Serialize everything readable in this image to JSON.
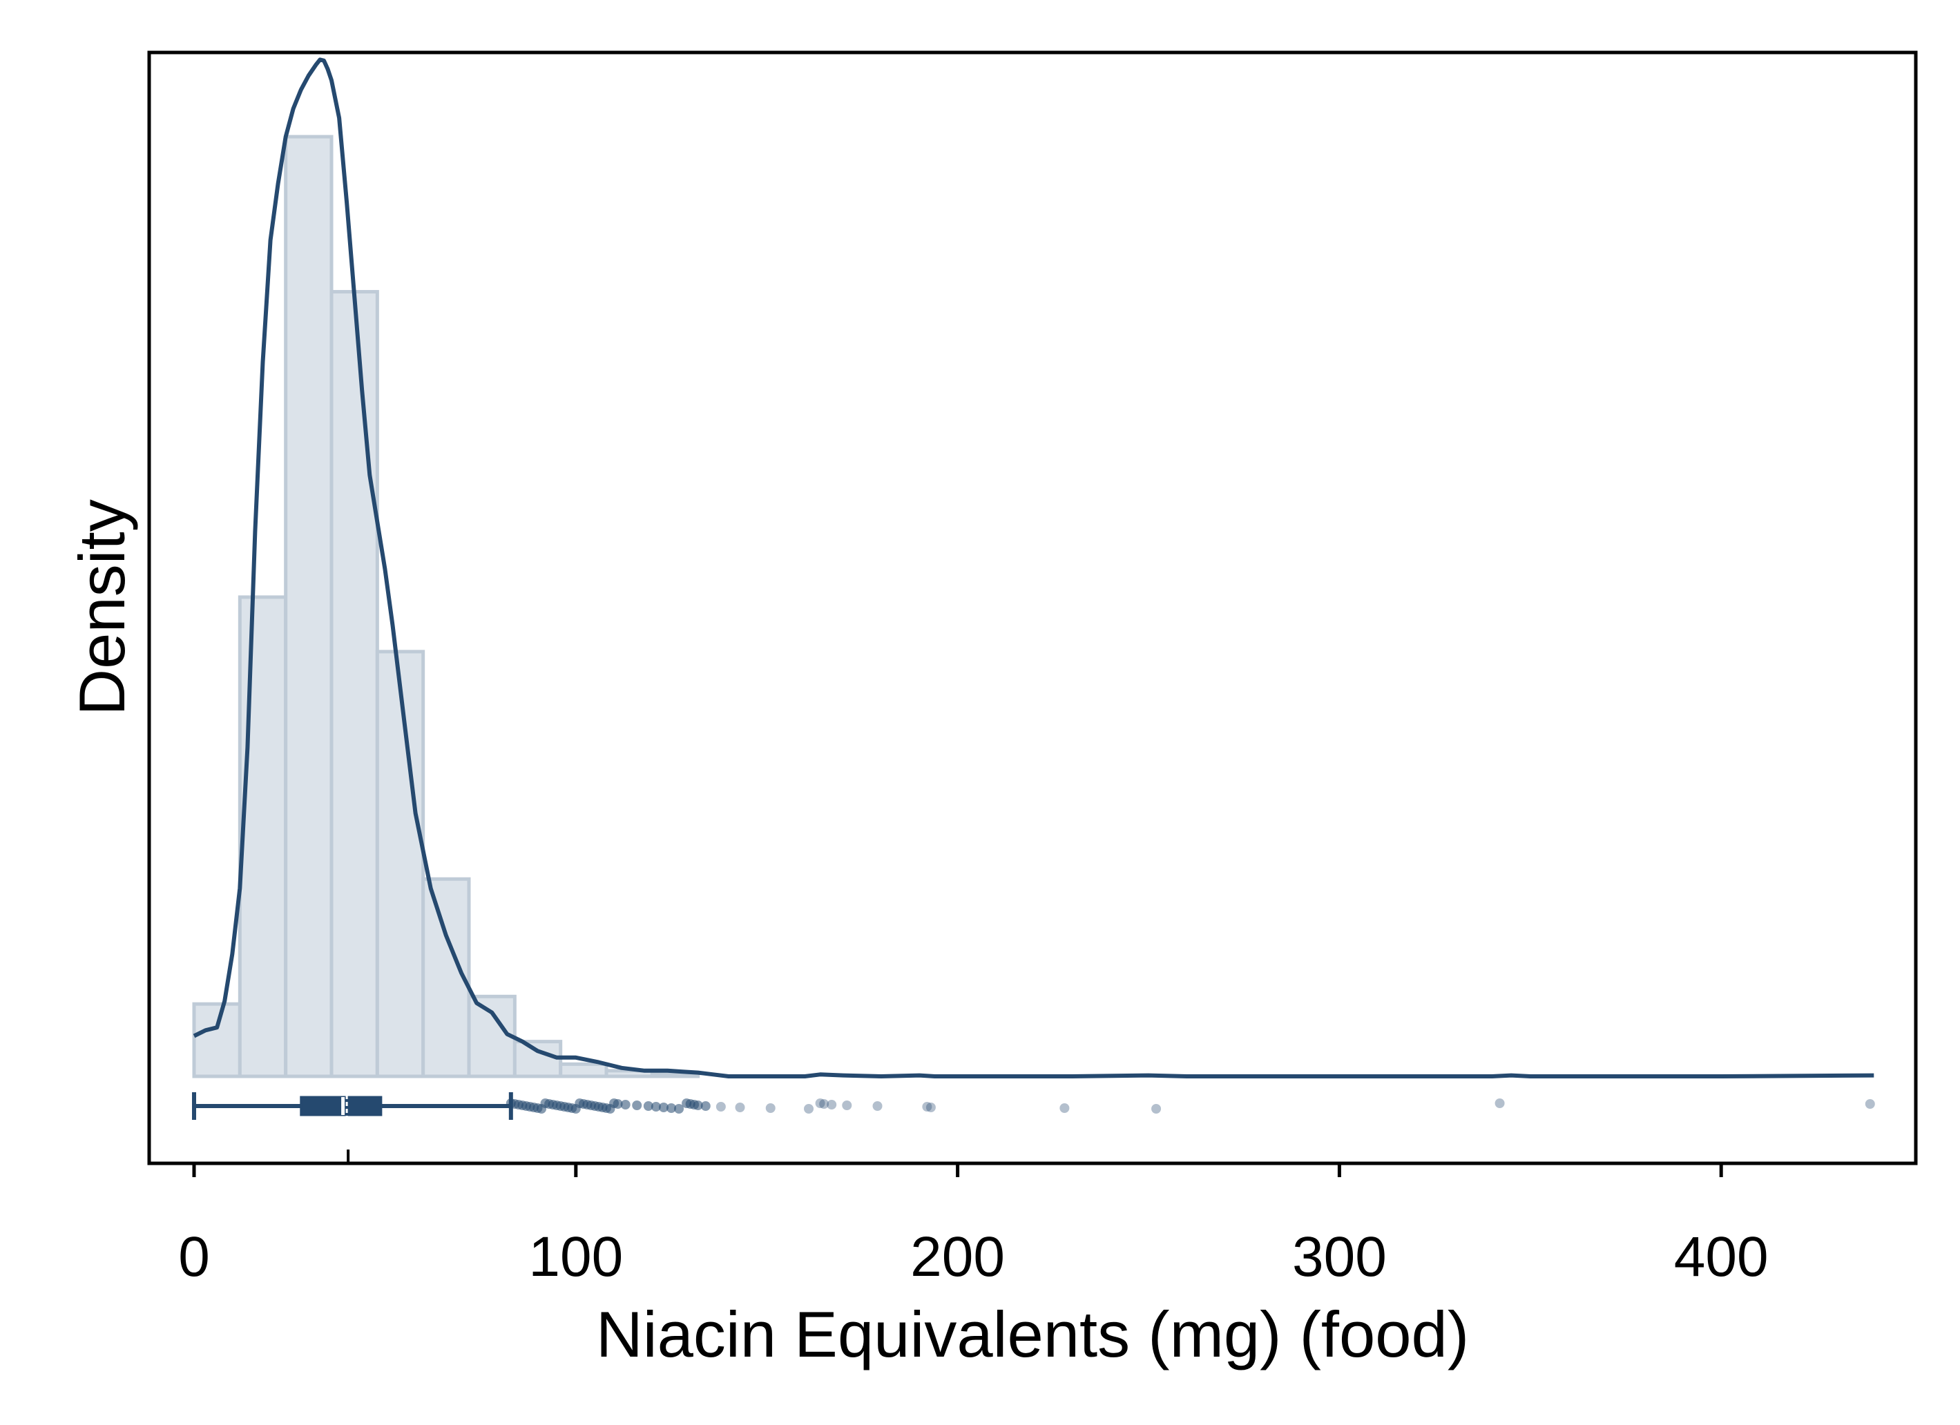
{
  "chart_data": {
    "type": "histogram",
    "title": "",
    "xlabel": "Niacin Equivalents (mg) (food)",
    "ylabel": "Density",
    "xlim": [
      -12,
      451
    ],
    "x_ticks": [
      0,
      100,
      200,
      300,
      400
    ],
    "y_ticks": [],
    "grid": false,
    "legend": "none",
    "histogram": {
      "bin_edges": [
        0,
        12,
        24,
        36,
        48,
        60,
        72,
        84,
        96,
        108,
        120,
        132
      ],
      "relative_heights": [
        0.077,
        0.51,
        1.0,
        0.835,
        0.452,
        0.21,
        0.085,
        0.037,
        0.013,
        0.006,
        0.003
      ]
    },
    "density_curve": {
      "x": [
        0,
        3,
        6,
        8,
        10,
        12,
        14,
        16,
        18,
        20,
        22,
        24,
        26,
        28,
        30,
        32,
        33,
        34,
        35,
        36,
        38,
        40,
        42,
        44,
        46,
        48,
        50,
        52,
        55,
        58,
        62,
        66,
        70,
        74,
        78,
        82,
        86,
        90,
        95,
        100,
        106,
        112,
        118,
        124,
        128,
        132,
        136,
        140,
        150,
        160,
        164,
        170,
        180,
        190,
        194,
        200,
        230,
        250,
        260,
        300,
        340,
        345,
        350,
        400,
        440
      ],
      "y": [
        0.043,
        0.049,
        0.052,
        0.08,
        0.13,
        0.2,
        0.35,
        0.58,
        0.76,
        0.89,
        0.95,
        1.0,
        1.03,
        1.05,
        1.065,
        1.077,
        1.082,
        1.081,
        1.072,
        1.06,
        1.02,
        0.93,
        0.83,
        0.73,
        0.64,
        0.59,
        0.54,
        0.48,
        0.38,
        0.28,
        0.2,
        0.15,
        0.11,
        0.078,
        0.068,
        0.045,
        0.037,
        0.027,
        0.02,
        0.02,
        0.015,
        0.009,
        0.006,
        0.006,
        0.005,
        0.004,
        0.002,
        0.0,
        0.0,
        0.0,
        0.002,
        0.001,
        0.0,
        0.001,
        0.0,
        0.0,
        0.0,
        0.001,
        0.0,
        0.0,
        0.0,
        0.001,
        0.0,
        0.0,
        0.001
      ]
    },
    "boxplot": {
      "whisker_low": 0,
      "q1": 28,
      "median": 39,
      "mean": 40,
      "q3": 49,
      "whisker_high": 83,
      "outliers": [
        83,
        84,
        85,
        86,
        87,
        88,
        89,
        90,
        91,
        92,
        93,
        94,
        95,
        96,
        97,
        98,
        99,
        100,
        101,
        102,
        103,
        104,
        105,
        106,
        107,
        108,
        109,
        110,
        111,
        113,
        116,
        119,
        121,
        123,
        125,
        127,
        129,
        130,
        131,
        132,
        134,
        138,
        143,
        151,
        161,
        164,
        165,
        167,
        171,
        179,
        192,
        193,
        228,
        252,
        342,
        439
      ]
    },
    "colors": {
      "navy": "#25496f",
      "bar_fill": "#dce3ea",
      "bar_edge": "#bfcbd7",
      "outlier": "#90a4b8",
      "background": "#ffffff",
      "frame": "#000000"
    }
  }
}
